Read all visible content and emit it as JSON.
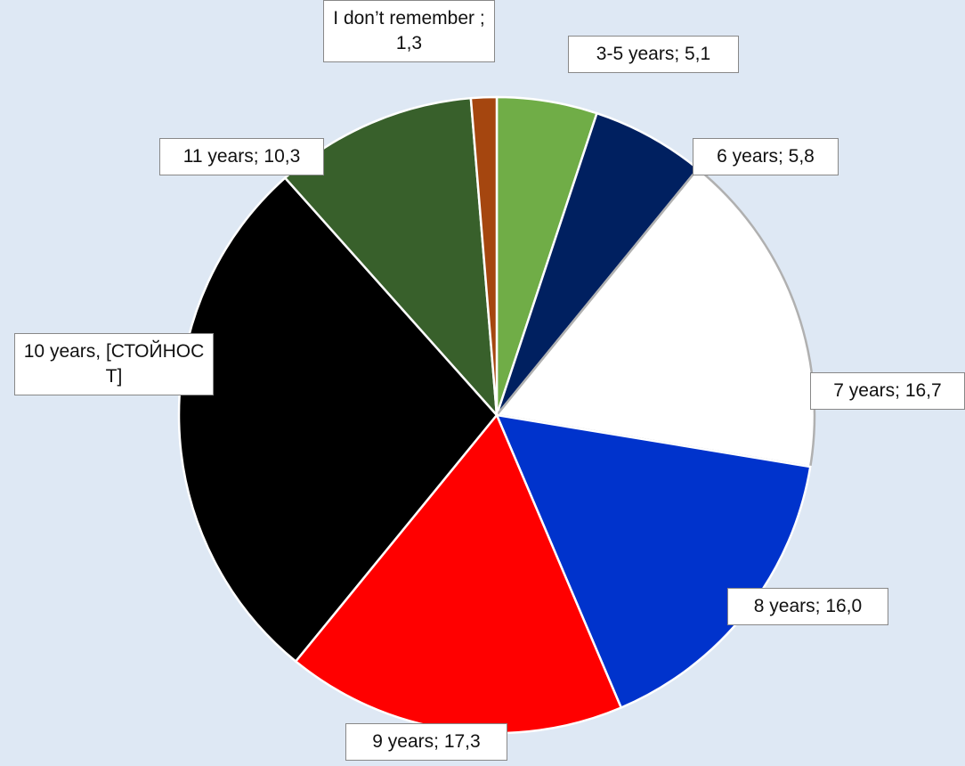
{
  "chart_data": {
    "type": "pie",
    "categories": [
      "3-5 years",
      "6 years",
      "7 years",
      "8 years",
      "9 years",
      "10 years",
      "11 years",
      "I don’t remember"
    ],
    "values": [
      5.1,
      5.8,
      16.7,
      16.0,
      17.3,
      27.5,
      10.3,
      1.3
    ],
    "value_labels": [
      "5,1",
      "5,8",
      "16,7",
      "16,0",
      "17,3",
      "[СТОЙНОСТ]",
      "10,3",
      "1,3"
    ],
    "colors": [
      "#70ad47",
      "#002060",
      "#ffffff",
      "#0033cc",
      "#ff0000",
      "#000000",
      "#38602b",
      "#a5460f"
    ],
    "label_separators": [
      "; ",
      "; ",
      "; ",
      "; ",
      "; ",
      ", ",
      "; ",
      " ; "
    ]
  }
}
